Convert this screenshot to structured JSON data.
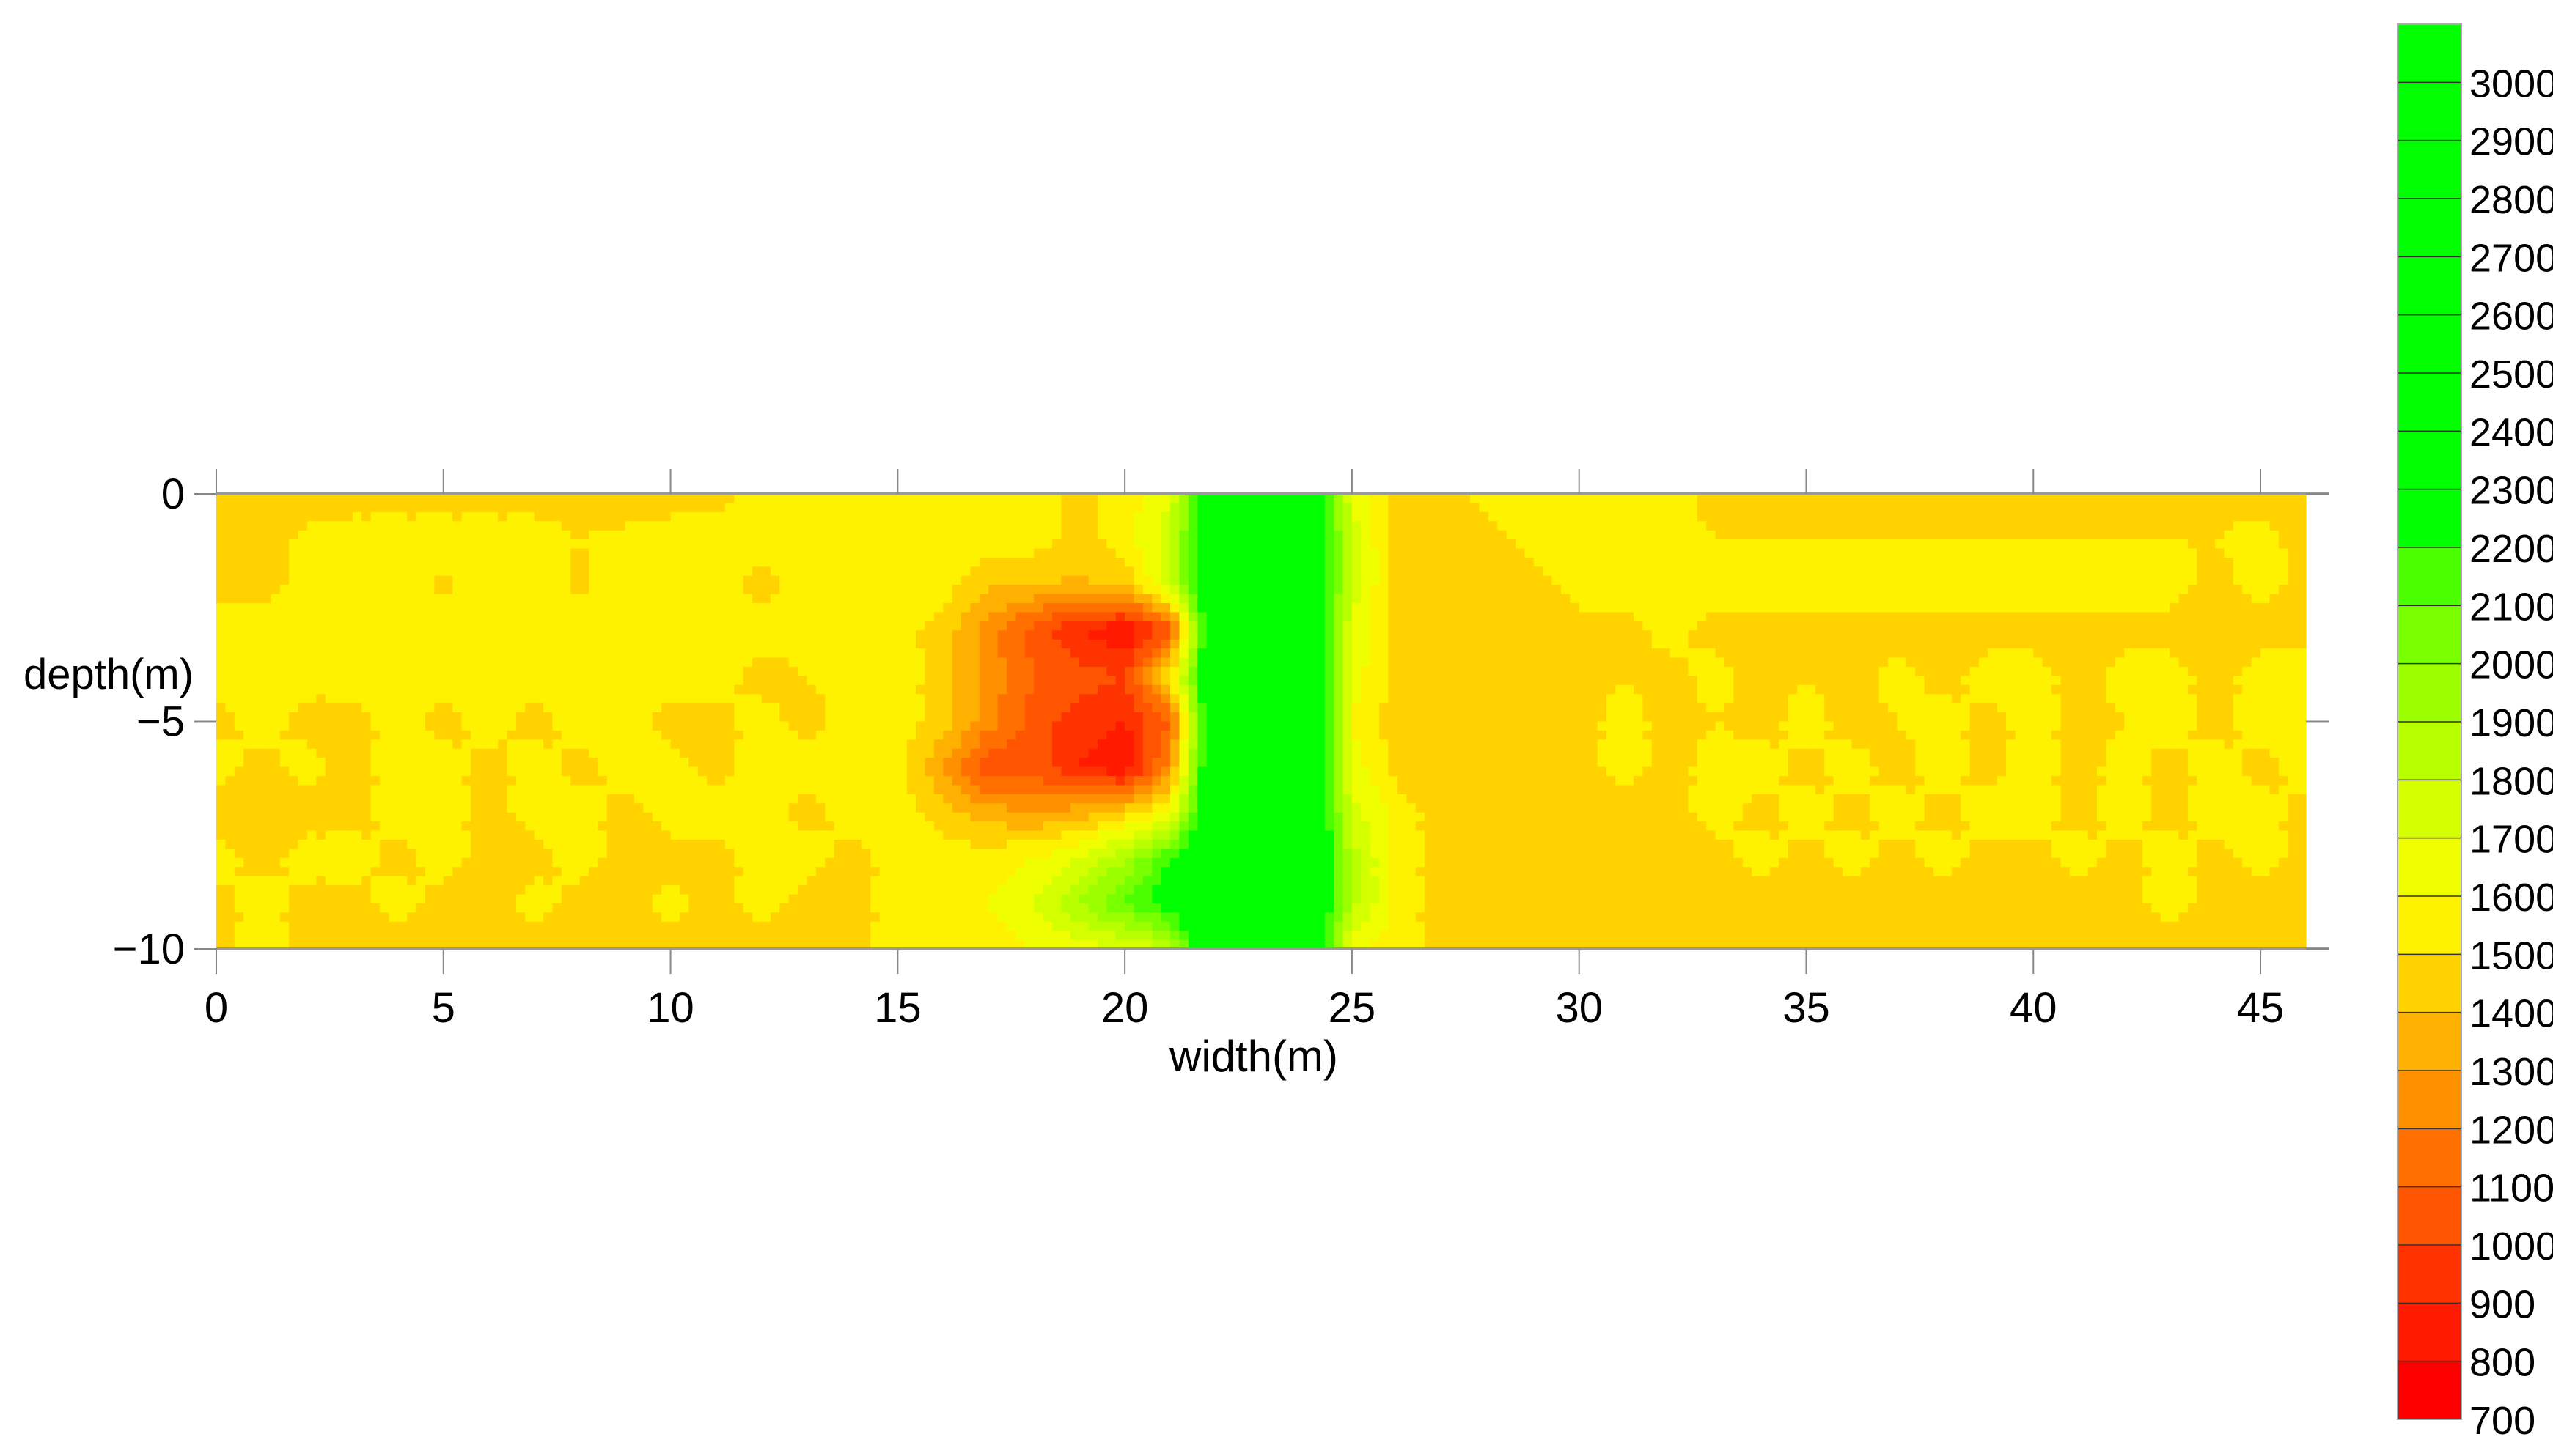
{
  "chart_data": {
    "type": "heatmap",
    "style": "filled contour",
    "xlabel": "width(m)",
    "ylabel": "depth(m)",
    "xlim": [
      0,
      46
    ],
    "ylim": [
      -10,
      0
    ],
    "x_ticks": [
      "0",
      "5",
      "10",
      "15",
      "20",
      "25",
      "30",
      "35",
      "40",
      "45"
    ],
    "y_ticks": [
      "0",
      "−5",
      "−10"
    ],
    "x": [
      0,
      1,
      2,
      3,
      4,
      5,
      6,
      7,
      8,
      9,
      10,
      11,
      12,
      13,
      14,
      15,
      16,
      17,
      18,
      19,
      20,
      21,
      22,
      23,
      24,
      25,
      26,
      27,
      28,
      29,
      30,
      31,
      32,
      33,
      34,
      35,
      36,
      37,
      38,
      39,
      40,
      41,
      42,
      43,
      44,
      45,
      46
    ],
    "depth": [
      0,
      -1,
      -2,
      -3,
      -4,
      -5,
      -6,
      -7,
      -8,
      -9,
      -10
    ],
    "values": [
      [
        1450,
        1450,
        1450,
        1450,
        1450,
        1450,
        1450,
        1450,
        1450,
        1450,
        1450,
        1450,
        1550,
        1550,
        1550,
        1550,
        1550,
        1550,
        1550,
        1450,
        1550,
        1700,
        2600,
        2700,
        2600,
        1700,
        1450,
        1450,
        1550,
        1550,
        1550,
        1550,
        1550,
        1450,
        1450,
        1450,
        1450,
        1450,
        1450,
        1450,
        1450,
        1450,
        1450,
        1450,
        1450,
        1450,
        1450
      ],
      [
        1450,
        1450,
        1520,
        1550,
        1550,
        1550,
        1550,
        1550,
        1500,
        1520,
        1550,
        1550,
        1550,
        1550,
        1550,
        1550,
        1550,
        1550,
        1550,
        1450,
        1550,
        1750,
        2600,
        2700,
        2600,
        1750,
        1450,
        1450,
        1450,
        1550,
        1550,
        1550,
        1550,
        1500,
        1500,
        1500,
        1500,
        1500,
        1500,
        1500,
        1500,
        1500,
        1500,
        1500,
        1500,
        1550,
        1450
      ],
      [
        1450,
        1450,
        1550,
        1550,
        1550,
        1480,
        1550,
        1550,
        1480,
        1550,
        1550,
        1550,
        1450,
        1550,
        1550,
        1550,
        1550,
        1420,
        1400,
        1380,
        1420,
        1750,
        2600,
        2700,
        2600,
        1750,
        1450,
        1450,
        1450,
        1450,
        1550,
        1550,
        1550,
        1550,
        1550,
        1550,
        1550,
        1550,
        1550,
        1550,
        1550,
        1550,
        1550,
        1550,
        1450,
        1550,
        1450
      ],
      [
        1550,
        1550,
        1550,
        1550,
        1550,
        1550,
        1550,
        1550,
        1550,
        1550,
        1550,
        1550,
        1550,
        1550,
        1500,
        1550,
        1450,
        1250,
        1050,
        900,
        800,
        1050,
        2600,
        2700,
        2600,
        1700,
        1450,
        1450,
        1450,
        1450,
        1450,
        1450,
        1550,
        1450,
        1450,
        1450,
        1450,
        1450,
        1450,
        1450,
        1450,
        1450,
        1450,
        1450,
        1450,
        1450,
        1450
      ],
      [
        1550,
        1550,
        1550,
        1550,
        1550,
        1550,
        1550,
        1550,
        1550,
        1550,
        1550,
        1550,
        1450,
        1500,
        1550,
        1550,
        1450,
        1250,
        1100,
        1050,
        1000,
        1500,
        2600,
        2700,
        2600,
        1650,
        1450,
        1450,
        1450,
        1450,
        1450,
        1500,
        1450,
        1550,
        1450,
        1500,
        1450,
        1550,
        1450,
        1550,
        1550,
        1450,
        1550,
        1550,
        1450,
        1550,
        1550
      ],
      [
        1450,
        1550,
        1450,
        1450,
        1550,
        1450,
        1550,
        1450,
        1550,
        1550,
        1450,
        1450,
        1550,
        1450,
        1550,
        1550,
        1450,
        1250,
        1050,
        950,
        900,
        1100,
        2600,
        2700,
        2600,
        1600,
        1450,
        1450,
        1450,
        1500,
        1450,
        1550,
        1450,
        1500,
        1450,
        1550,
        1450,
        1500,
        1550,
        1450,
        1550,
        1450,
        1500,
        1550,
        1450,
        1550,
        1550
      ],
      [
        1550,
        1450,
        1550,
        1450,
        1550,
        1550,
        1450,
        1550,
        1450,
        1550,
        1550,
        1450,
        1550,
        1550,
        1550,
        1550,
        1300,
        1000,
        1050,
        900,
        800,
        1250,
        2600,
        2700,
        2600,
        1650,
        1450,
        1450,
        1450,
        1450,
        1450,
        1550,
        1450,
        1550,
        1550,
        1450,
        1550,
        1450,
        1550,
        1450,
        1550,
        1450,
        1550,
        1450,
        1550,
        1450,
        1550
      ],
      [
        1450,
        1450,
        1450,
        1450,
        1550,
        1550,
        1450,
        1550,
        1550,
        1450,
        1550,
        1550,
        1550,
        1450,
        1550,
        1550,
        1450,
        1350,
        1300,
        1350,
        1450,
        1600,
        2600,
        2700,
        2600,
        1750,
        1550,
        1450,
        1450,
        1450,
        1450,
        1450,
        1450,
        1550,
        1450,
        1550,
        1450,
        1550,
        1450,
        1550,
        1550,
        1450,
        1550,
        1450,
        1550,
        1550,
        1450
      ],
      [
        1550,
        1450,
        1550,
        1550,
        1450,
        1550,
        1450,
        1450,
        1550,
        1450,
        1450,
        1450,
        1550,
        1550,
        1450,
        1550,
        1550,
        1550,
        1600,
        1700,
        1900,
        2200,
        2600,
        2700,
        2600,
        1850,
        1550,
        1450,
        1450,
        1450,
        1450,
        1450,
        1450,
        1450,
        1550,
        1450,
        1550,
        1450,
        1550,
        1450,
        1450,
        1550,
        1450,
        1550,
        1450,
        1550,
        1450
      ],
      [
        1450,
        1550,
        1450,
        1450,
        1550,
        1450,
        1450,
        1550,
        1450,
        1450,
        1550,
        1450,
        1550,
        1450,
        1450,
        1550,
        1550,
        1600,
        1700,
        1900,
        2100,
        2300,
        2600,
        2700,
        2600,
        1850,
        1550,
        1450,
        1450,
        1450,
        1450,
        1450,
        1450,
        1450,
        1450,
        1450,
        1450,
        1450,
        1450,
        1450,
        1450,
        1450,
        1450,
        1550,
        1450,
        1450,
        1450
      ],
      [
        1450,
        1550,
        1450,
        1450,
        1450,
        1450,
        1450,
        1450,
        1450,
        1450,
        1450,
        1450,
        1450,
        1450,
        1450,
        1550,
        1550,
        1550,
        1600,
        1650,
        1700,
        1800,
        2600,
        2700,
        2600,
        1600,
        1550,
        1450,
        1450,
        1450,
        1450,
        1450,
        1450,
        1450,
        1450,
        1450,
        1450,
        1450,
        1450,
        1450,
        1450,
        1450,
        1450,
        1450,
        1450,
        1450,
        1450
      ]
    ],
    "colorbar": {
      "levels": [
        700,
        800,
        900,
        1000,
        1100,
        1200,
        1300,
        1400,
        1500,
        1600,
        1700,
        1800,
        1900,
        2000,
        2100,
        2200,
        2300,
        2400,
        2500,
        2600,
        2700,
        2800,
        2900,
        3000,
        3100
      ],
      "tick_labels": [
        "700",
        "800",
        "900",
        "1000",
        "1100",
        "1200",
        "1300",
        "1400",
        "1500",
        "1600",
        "1700",
        "1800",
        "1900",
        "2000",
        "2100",
        "2200",
        "2300",
        "2400",
        "2500",
        "2600",
        "2700",
        "2800",
        "2900",
        "3000"
      ],
      "colors": [
        "#ff0000",
        "#ff1a00",
        "#ff3300",
        "#ff5500",
        "#ff7000",
        "#ff9000",
        "#ffb000",
        "#ffd200",
        "#fff200",
        "#f0ff00",
        "#d4ff00",
        "#b8ff00",
        "#9cff00",
        "#78ff00",
        "#4cff00",
        "#00ff00",
        "#00ff00",
        "#00ff00",
        "#00ff00",
        "#00ff00",
        "#00ff00",
        "#00ff00",
        "#00ff00",
        "#00ff00"
      ]
    },
    "grid": false
  }
}
